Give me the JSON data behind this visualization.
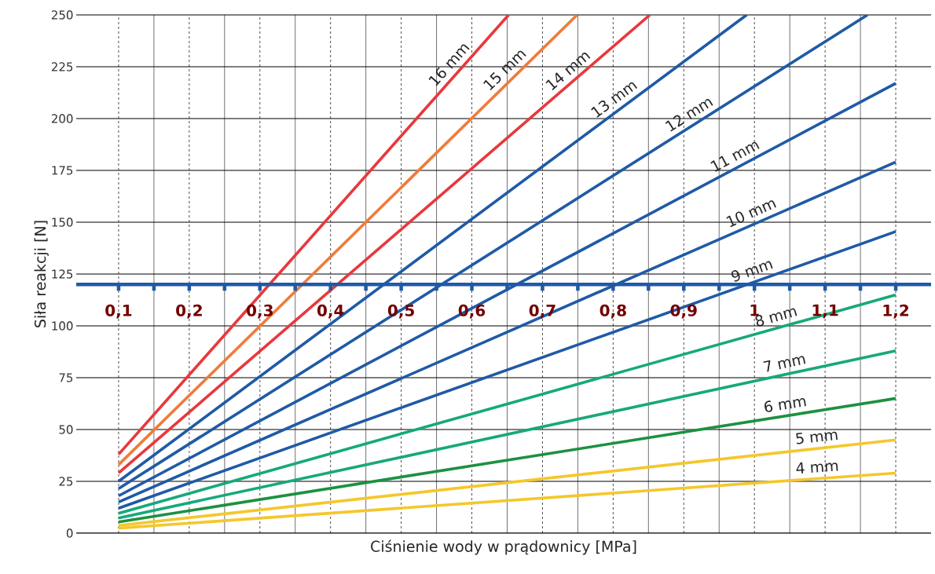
{
  "chart_data": {
    "type": "line",
    "xlabel": "Ciśnienie wody w prądownicy [MPa]",
    "ylabel": "Siła reakcji [N]",
    "xlim": [
      0.04,
      1.25
    ],
    "ylim": [
      0,
      250
    ],
    "xticks": [
      {
        "value": 0.1,
        "label": "0,1"
      },
      {
        "value": 0.15,
        "label": null
      },
      {
        "value": 0.2,
        "label": "0,2"
      },
      {
        "value": 0.25,
        "label": null
      },
      {
        "value": 0.3,
        "label": "0,3"
      },
      {
        "value": 0.35,
        "label": null
      },
      {
        "value": 0.4,
        "label": "0,4"
      },
      {
        "value": 0.45,
        "label": null
      },
      {
        "value": 0.5,
        "label": "0,5"
      },
      {
        "value": 0.55,
        "label": null
      },
      {
        "value": 0.6,
        "label": "0,6"
      },
      {
        "value": 0.65,
        "label": null
      },
      {
        "value": 0.7,
        "label": "0,7"
      },
      {
        "value": 0.75,
        "label": null
      },
      {
        "value": 0.8,
        "label": "0,8"
      },
      {
        "value": 0.85,
        "label": null
      },
      {
        "value": 0.9,
        "label": "0,9"
      },
      {
        "value": 0.95,
        "label": null
      },
      1,
      {
        "value": 1.05,
        "label": null
      },
      {
        "value": 1.1,
        "label": "1,1"
      },
      {
        "value": 1.15,
        "label": null
      },
      {
        "value": 1.2,
        "label": "1,2"
      }
    ],
    "yticks": [
      0,
      25,
      50,
      75,
      100,
      125,
      150,
      175,
      200,
      225,
      250
    ],
    "grid": true,
    "legend": false,
    "marker": "none",
    "line_style": "solid",
    "series": [
      {
        "name": "16 mm",
        "color": "#e8383d",
        "x": [
          0.1,
          0.652
        ],
        "values": [
          38,
          250
        ]
      },
      {
        "name": "15 mm",
        "color": "#f07b3a",
        "x": [
          0.1,
          0.749
        ],
        "values": [
          33,
          250
        ]
      },
      {
        "name": "14 mm",
        "color": "#e8383d",
        "x": [
          0.1,
          0.852
        ],
        "values": [
          29,
          250
        ]
      },
      {
        "name": "13 mm",
        "color": "#1f5aa6",
        "x": [
          0.1,
          0.989
        ],
        "values": [
          25,
          250
        ]
      },
      {
        "name": "12 mm",
        "color": "#1f5aa6",
        "x": [
          0.1,
          1.16
        ],
        "values": [
          21.5,
          250
        ]
      },
      {
        "name": "11 mm",
        "color": "#1f5aa6",
        "x": [
          0.1,
          1.2
        ],
        "values": [
          18,
          217
        ]
      },
      {
        "name": "10 mm",
        "color": "#1f5aa6",
        "x": [
          0.1,
          1.2
        ],
        "values": [
          15,
          179
        ]
      },
      {
        "name": "9 mm",
        "color": "#1f5aa6",
        "x": [
          0.1,
          1.2
        ],
        "values": [
          12,
          145.5
        ]
      },
      {
        "name": "8 mm",
        "color": "#16a979",
        "x": [
          0.1,
          1.2
        ],
        "values": [
          9.6,
          115
        ]
      },
      {
        "name": "7 mm",
        "color": "#16a979",
        "x": [
          0.1,
          1.2
        ],
        "values": [
          7.3,
          88
        ]
      },
      {
        "name": "6 mm",
        "color": "#1c9140",
        "x": [
          0.1,
          1.2
        ],
        "values": [
          5.4,
          65
        ]
      },
      {
        "name": "5 mm",
        "color": "#f5c72c",
        "x": [
          0.1,
          1.2
        ],
        "values": [
          3.7,
          45
        ]
      },
      {
        "name": "4 mm",
        "color": "#f5c72c",
        "x": [
          0.1,
          1.2
        ],
        "values": [
          2.4,
          29
        ]
      }
    ]
  }
}
